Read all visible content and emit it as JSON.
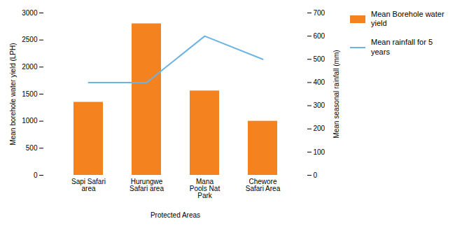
{
  "chart_data": {
    "type": "bar",
    "categories": [
      "Sapi Safari\narea",
      "Hurungwe\nSafari area",
      "Mana\nPools Nat\nPark",
      "Chewore\nSafari Area"
    ],
    "series": [
      {
        "name": "Mean Borehole water\nyield",
        "type": "bar",
        "color": "#F4821F",
        "values": [
          1350,
          2800,
          1560,
          1000
        ]
      },
      {
        "name": "Mean rainfall for 5\nyears",
        "type": "line",
        "color": "#6CB4E4",
        "values": [
          400,
          400,
          600,
          500
        ],
        "axis": "y2"
      }
    ],
    "xlabel": "Protected Areas",
    "ylabel": "Mean borehole water yield (LPH)",
    "y2label": "Mean seasonal rainfall (mm)",
    "ylim": [
      0,
      3000
    ],
    "yticks": [
      0,
      500,
      1000,
      1500,
      2000,
      2500,
      3000
    ],
    "y2lim": [
      0,
      700
    ],
    "y2ticks": [
      0,
      100,
      200,
      300,
      400,
      500,
      600,
      700
    ],
    "grid": false,
    "legend": "right"
  }
}
